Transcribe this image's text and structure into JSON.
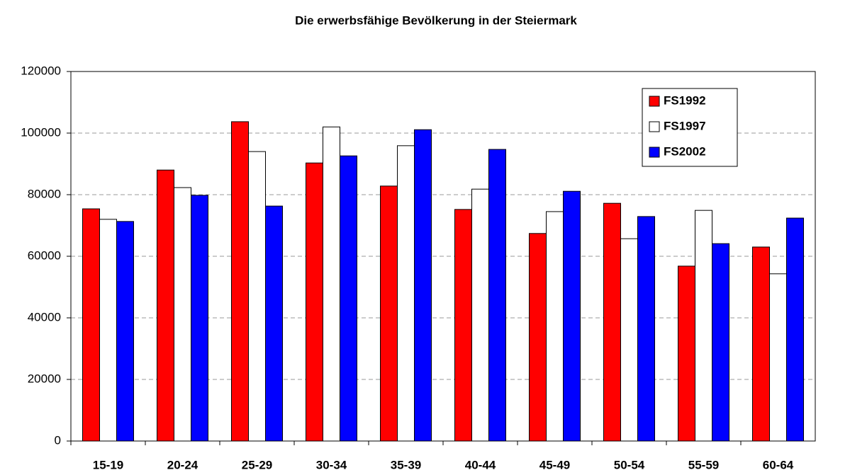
{
  "chart_data": {
    "type": "bar",
    "title": "Die erwerbsfähige Bevölkerung in der Steiermark",
    "categories": [
      "15-19",
      "20-24",
      "25-29",
      "30-34",
      "35-39",
      "40-44",
      "45-49",
      "50-54",
      "55-59",
      "60-64"
    ],
    "series": [
      {
        "name": "FS1992",
        "color": "#ff0000",
        "values": [
          75400,
          88000,
          103700,
          90300,
          82800,
          75200,
          67400,
          77200,
          56800,
          63000
        ]
      },
      {
        "name": "FS1997",
        "color": "#ffffff",
        "values": [
          72000,
          82300,
          94000,
          102000,
          95900,
          81800,
          74500,
          65700,
          74900,
          54300
        ]
      },
      {
        "name": "FS2002",
        "color": "#0000ff",
        "values": [
          71300,
          79800,
          76300,
          92600,
          101100,
          94700,
          81100,
          72900,
          64100,
          72400
        ]
      }
    ],
    "ylim": [
      0,
      120000
    ],
    "yticks": [
      0,
      20000,
      40000,
      60000,
      80000,
      100000,
      120000
    ],
    "grid": true,
    "legend": "upper right"
  }
}
